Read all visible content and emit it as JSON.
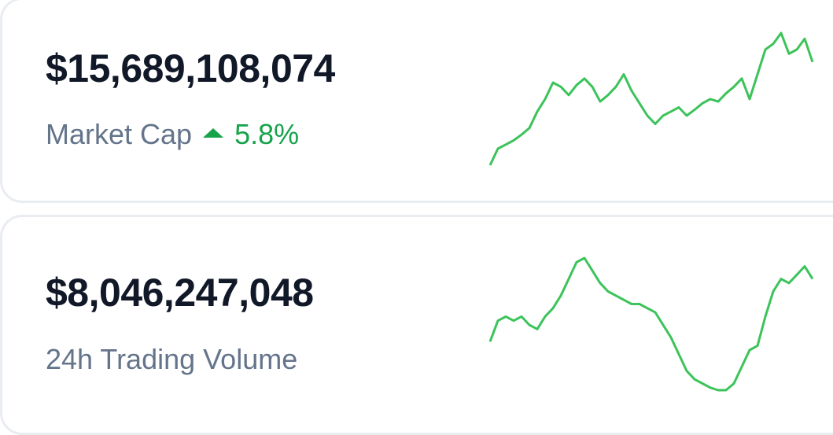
{
  "cards": [
    {
      "value": "$15,689,108,074",
      "label": "Market Cap",
      "change": "5.8%",
      "sparkline": {
        "type": "line",
        "color": "#3cc35a",
        "values": [
          0,
          20,
          25,
          30,
          37,
          45,
          65,
          80,
          100,
          95,
          85,
          97,
          105,
          95,
          77,
          85,
          95,
          110,
          90,
          75,
          60,
          50,
          60,
          65,
          70,
          60,
          67,
          75,
          80,
          77,
          87,
          95,
          105,
          80,
          110,
          140,
          147,
          160,
          135,
          140,
          153,
          125
        ]
      }
    },
    {
      "value": "$8,046,247,048",
      "label": "24h Trading Volume",
      "sparkline": {
        "type": "line",
        "color": "#3cc35a",
        "values": [
          60,
          85,
          90,
          85,
          90,
          80,
          75,
          90,
          100,
          115,
          135,
          155,
          160,
          145,
          130,
          120,
          115,
          110,
          105,
          105,
          100,
          95,
          80,
          65,
          45,
          25,
          15,
          10,
          5,
          2,
          2,
          10,
          30,
          50,
          55,
          90,
          120,
          135,
          130,
          140,
          150,
          135
        ]
      }
    }
  ]
}
